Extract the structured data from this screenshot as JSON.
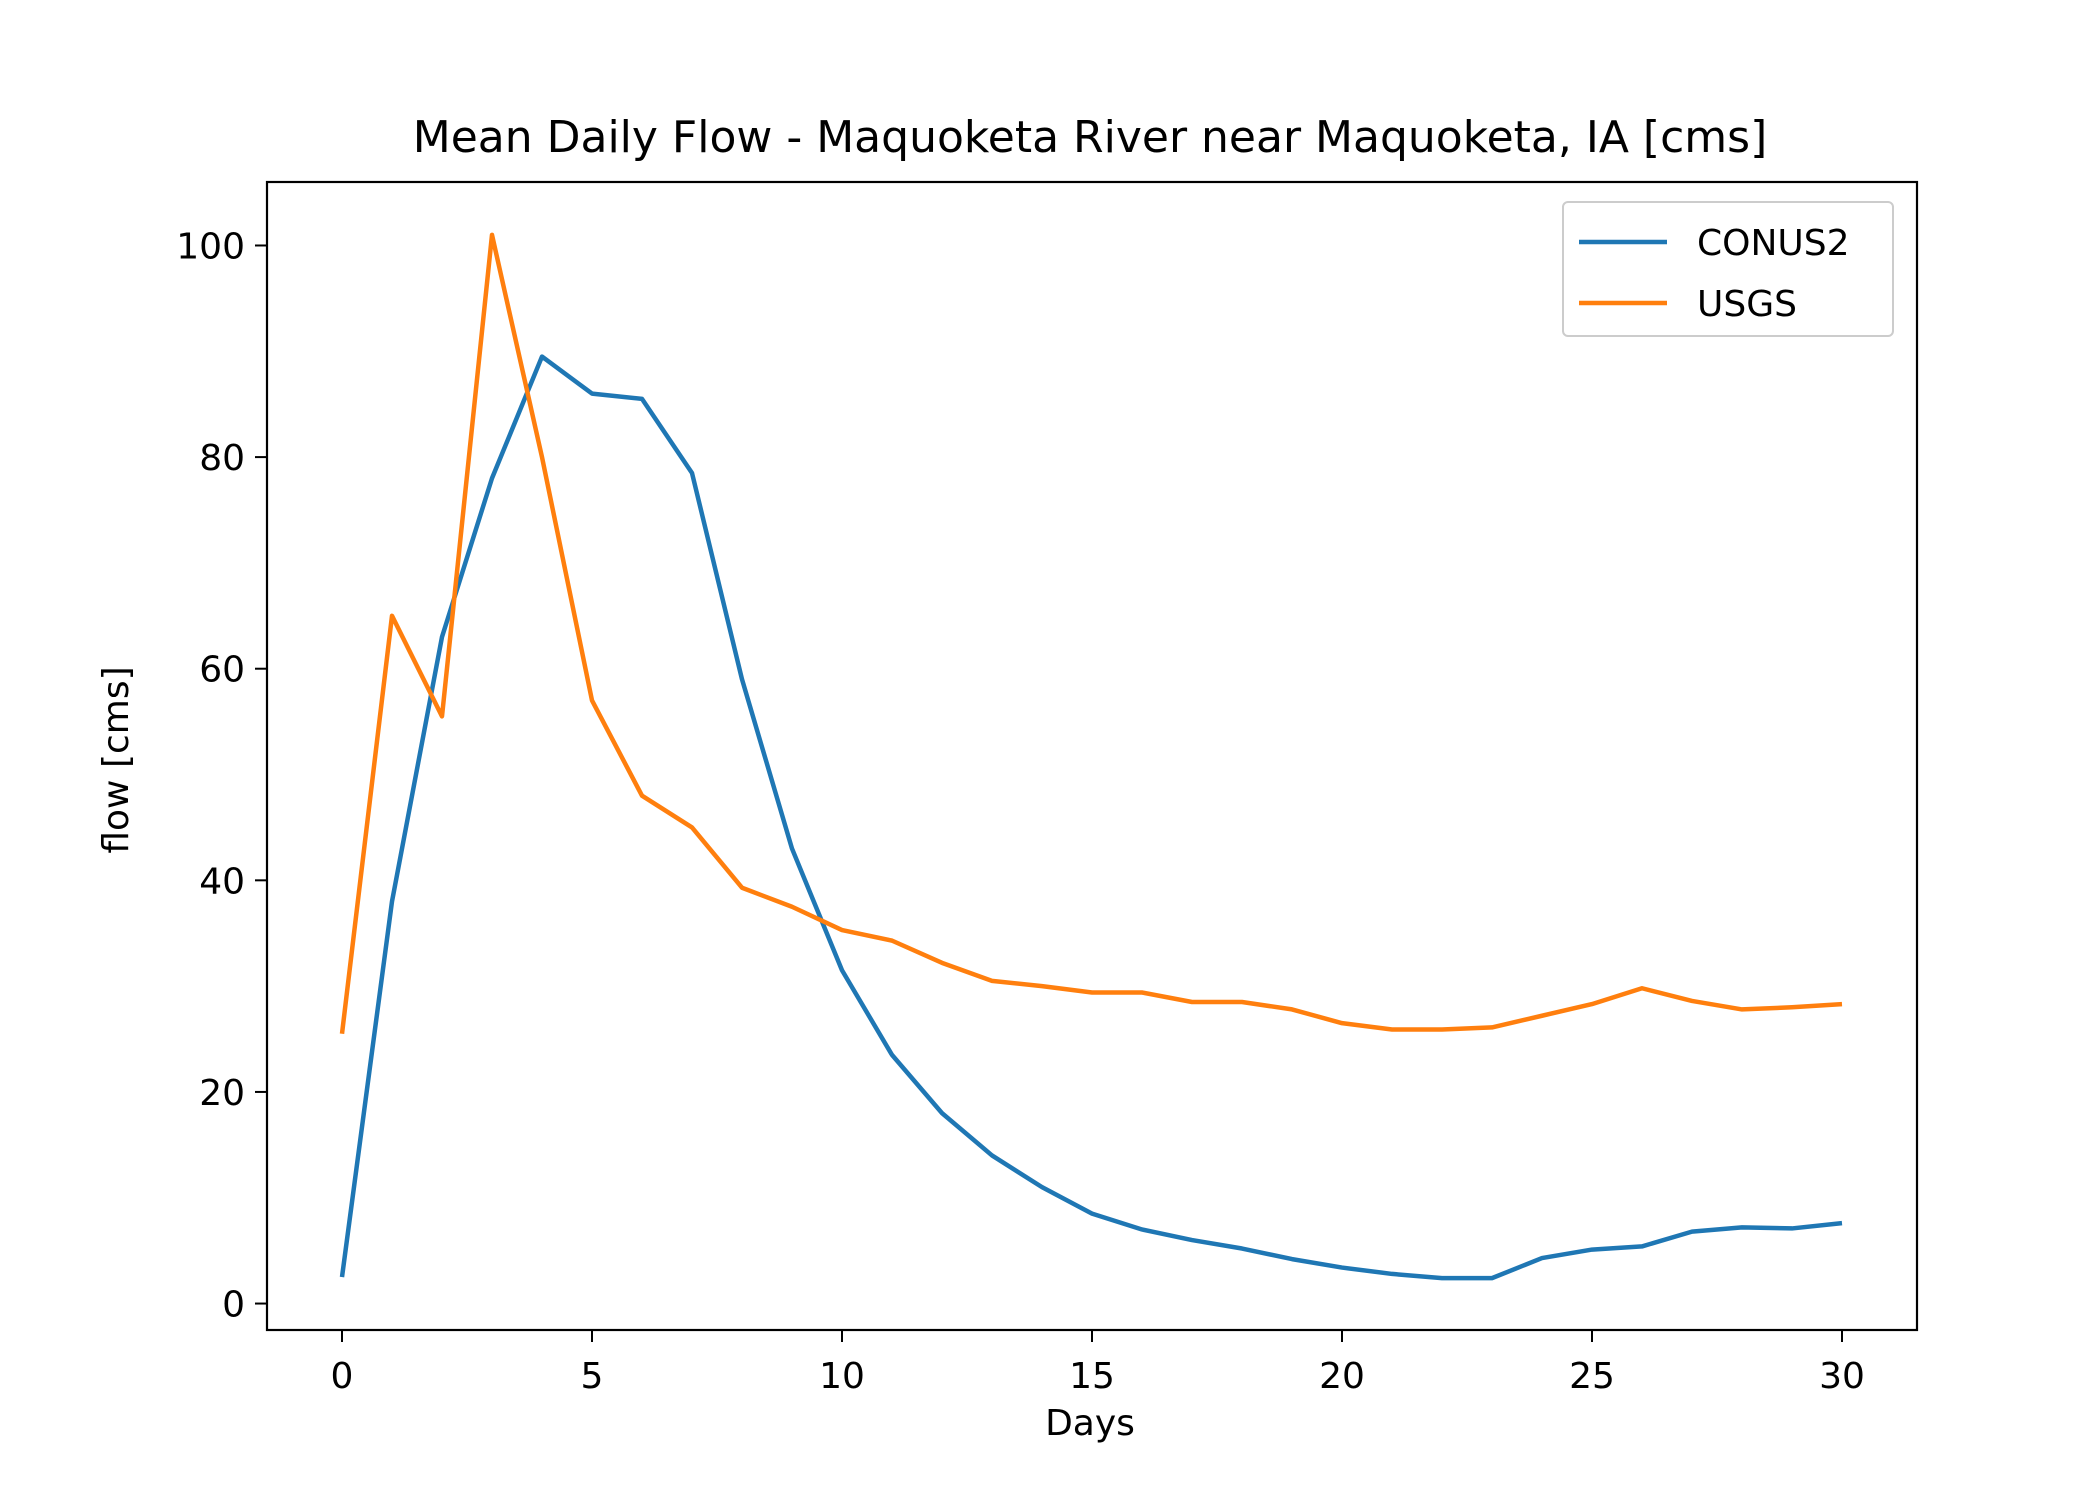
{
  "chart_data": {
    "type": "line",
    "title": "Mean Daily Flow - Maquoketa River near Maquoketa, IA [cms]",
    "xlabel": "Days",
    "ylabel": "flow [cms]",
    "xlim": [
      -1.5,
      31.5
    ],
    "ylim": [
      -2.5,
      106
    ],
    "xticks": [
      0,
      5,
      10,
      15,
      20,
      25,
      30
    ],
    "yticks": [
      0,
      20,
      40,
      60,
      80,
      100
    ],
    "grid": false,
    "legend_position": "top-right",
    "x": [
      0,
      1,
      2,
      3,
      4,
      5,
      6,
      7,
      8,
      9,
      10,
      11,
      12,
      13,
      14,
      15,
      16,
      17,
      18,
      19,
      20,
      21,
      22,
      23,
      24,
      25,
      26,
      27,
      28,
      29,
      30
    ],
    "series": [
      {
        "name": "CONUS2",
        "color": "#1f77b4",
        "values": [
          2.5,
          38,
          63,
          78,
          89.5,
          86,
          85.5,
          78.5,
          59,
          43,
          31.5,
          23.5,
          18,
          14,
          11,
          8.5,
          7,
          6,
          5.2,
          4.2,
          3.4,
          2.8,
          2.4,
          2.4,
          4.3,
          5.1,
          5.4,
          6.8,
          7.2,
          7.1,
          7.6
        ]
      },
      {
        "name": "USGS",
        "color": "#ff7f0e",
        "values": [
          25.5,
          65,
          55.5,
          101,
          80,
          57,
          48,
          45,
          39.3,
          37.5,
          35.3,
          34.3,
          32.2,
          30.5,
          30,
          29.4,
          29.4,
          28.5,
          28.5,
          27.8,
          26.5,
          25.9,
          25.9,
          26.1,
          27.2,
          28.3,
          29.8,
          28.6,
          27.8,
          28,
          28.3
        ]
      }
    ]
  }
}
